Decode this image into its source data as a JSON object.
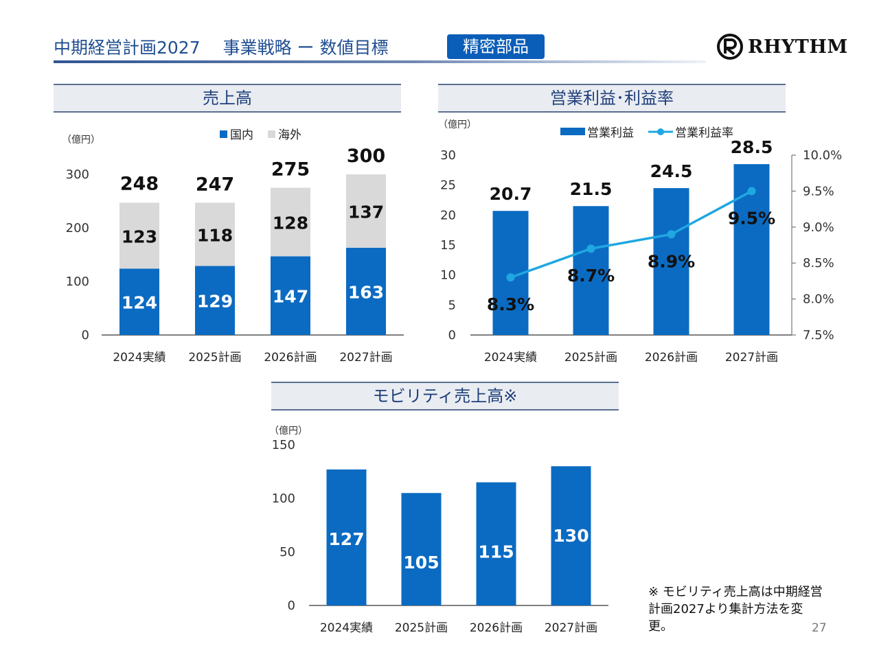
{
  "header": {
    "title": "中期経営計画2027　 事業戦略 ー 数値目標",
    "badge": "精密部品",
    "logo_text": "RHYTHM",
    "logo_icon": "rhythm-logo-icon"
  },
  "colors": {
    "domestic": "#0b6bc2",
    "overseas": "#d9d9d9",
    "profit": "#0b6bc2",
    "rate_line": "#1fa7e1",
    "title": "#1f4e91",
    "badge_bg": "#0b5eb8"
  },
  "sections": {
    "sales": "売上高",
    "profit": "営業利益･利益率",
    "mobility": "モビリティ売上高※"
  },
  "note": "※ モビリティ売上高は中期経営計画2027より集計方法を変更。",
  "page_number": "27",
  "chart_data": [
    {
      "id": "sales",
      "type": "bar",
      "stacked": true,
      "unit": "（億円）",
      "categories": [
        "2024実績",
        "2025計画",
        "2026計画",
        "2027計画"
      ],
      "series": [
        {
          "name": "国内",
          "values": [
            124,
            129,
            147,
            163
          ]
        },
        {
          "name": "海外",
          "values": [
            123,
            118,
            128,
            137
          ]
        }
      ],
      "totals": [
        248,
        247,
        275,
        300
      ],
      "ylim": [
        0,
        300
      ],
      "yticks": [
        0,
        100,
        200,
        300
      ],
      "legend": "top"
    },
    {
      "id": "profit",
      "type": "bar",
      "unit": "（億円）",
      "categories": [
        "2024実績",
        "2025計画",
        "2026計画",
        "2027計画"
      ],
      "series": [
        {
          "name": "営業利益",
          "type": "bar",
          "axis": "left",
          "values": [
            20.7,
            21.5,
            24.5,
            28.5
          ],
          "labels": [
            "20.7",
            "21.5",
            "24.5",
            "28.5"
          ]
        },
        {
          "name": "営業利益率",
          "type": "line",
          "axis": "right",
          "values": [
            8.3,
            8.7,
            8.9,
            9.5
          ],
          "labels": [
            "8.3%",
            "8.7%",
            "8.9%",
            "9.5%"
          ]
        }
      ],
      "ylim": [
        0,
        30
      ],
      "yticks": [
        "0",
        "5",
        "10",
        "15",
        "20",
        "25",
        "30"
      ],
      "y2lim": [
        7.5,
        10.0
      ],
      "y2ticks": [
        "7.5%",
        "8.0%",
        "8.5%",
        "9.0%",
        "9.5%",
        "10.0%"
      ],
      "legend": "top"
    },
    {
      "id": "mobility",
      "type": "bar",
      "unit": "（億円）",
      "categories": [
        "2024実績",
        "2025計画",
        "2026計画",
        "2027計画"
      ],
      "values": [
        127,
        105,
        115,
        130
      ],
      "ylim": [
        0,
        150
      ],
      "yticks": [
        0,
        50,
        100,
        150
      ]
    }
  ]
}
